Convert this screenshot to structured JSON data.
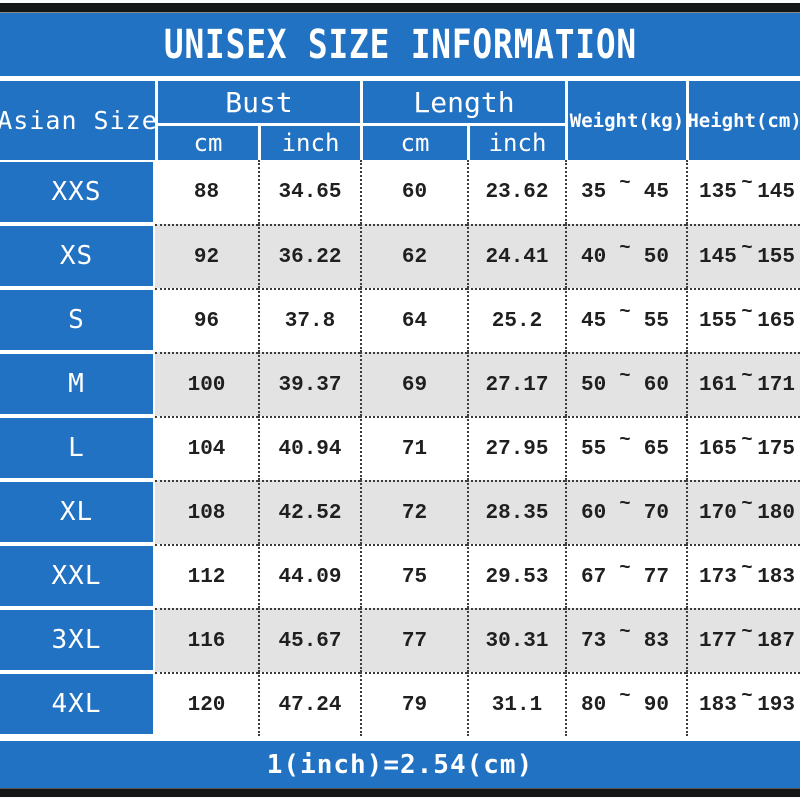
{
  "title": "UNISEX SIZE INFORMATION",
  "footer_note": "1(inch)=2.54(cm)",
  "colors": {
    "accent_blue": "#2272c4",
    "alt_row_gray": "#e4e3e4",
    "frame_bar_black": "#151515",
    "header_text": "#ffffff",
    "data_text": "#1f1f1f"
  },
  "table": {
    "corner_header": "Asian Size",
    "group_headers": {
      "bust": "Bust",
      "length": "Length"
    },
    "sub_headers": {
      "bust_cm": "cm",
      "bust_inch": "inch",
      "length_cm": "cm",
      "length_inch": "inch"
    },
    "single_headers": {
      "weight": "Weight(kg)",
      "height": "Height(cm)"
    },
    "tilde": "~",
    "rows": [
      {
        "size": "XXS",
        "bust_cm": "88",
        "bust_inch": "34.65",
        "length_cm": "60",
        "length_inch": "23.62",
        "weight_min": "35",
        "weight_max": "45",
        "height_min": "135",
        "height_max": "145"
      },
      {
        "size": "XS",
        "bust_cm": "92",
        "bust_inch": "36.22",
        "length_cm": "62",
        "length_inch": "24.41",
        "weight_min": "40",
        "weight_max": "50",
        "height_min": "145",
        "height_max": "155"
      },
      {
        "size": "S",
        "bust_cm": "96",
        "bust_inch": "37.8",
        "length_cm": "64",
        "length_inch": "25.2",
        "weight_min": "45",
        "weight_max": "55",
        "height_min": "155",
        "height_max": "165"
      },
      {
        "size": "M",
        "bust_cm": "100",
        "bust_inch": "39.37",
        "length_cm": "69",
        "length_inch": "27.17",
        "weight_min": "50",
        "weight_max": "60",
        "height_min": "161",
        "height_max": "171"
      },
      {
        "size": "L",
        "bust_cm": "104",
        "bust_inch": "40.94",
        "length_cm": "71",
        "length_inch": "27.95",
        "weight_min": "55",
        "weight_max": "65",
        "height_min": "165",
        "height_max": "175"
      },
      {
        "size": "XL",
        "bust_cm": "108",
        "bust_inch": "42.52",
        "length_cm": "72",
        "length_inch": "28.35",
        "weight_min": "60",
        "weight_max": "70",
        "height_min": "170",
        "height_max": "180"
      },
      {
        "size": "XXL",
        "bust_cm": "112",
        "bust_inch": "44.09",
        "length_cm": "75",
        "length_inch": "29.53",
        "weight_min": "67",
        "weight_max": "77",
        "height_min": "173",
        "height_max": "183"
      },
      {
        "size": "3XL",
        "bust_cm": "116",
        "bust_inch": "45.67",
        "length_cm": "77",
        "length_inch": "30.31",
        "weight_min": "73",
        "weight_max": "83",
        "height_min": "177",
        "height_max": "187"
      },
      {
        "size": "4XL",
        "bust_cm": "120",
        "bust_inch": "47.24",
        "length_cm": "79",
        "length_inch": "31.1",
        "weight_min": "80",
        "weight_max": "90",
        "height_min": "183",
        "height_max": "193"
      }
    ]
  },
  "chart_data": {
    "type": "table",
    "title": "UNISEX SIZE INFORMATION",
    "columns": [
      "Asian Size",
      "Bust cm",
      "Bust inch",
      "Length cm",
      "Length inch",
      "Weight(kg)",
      "Height(cm)"
    ],
    "rows": [
      [
        "XXS",
        88,
        34.65,
        60,
        23.62,
        "35~45",
        "135~145"
      ],
      [
        "XS",
        92,
        36.22,
        62,
        24.41,
        "40~50",
        "145~155"
      ],
      [
        "S",
        96,
        37.8,
        64,
        25.2,
        "45~55",
        "155~165"
      ],
      [
        "M",
        100,
        39.37,
        69,
        27.17,
        "50~60",
        "161~171"
      ],
      [
        "L",
        104,
        40.94,
        71,
        27.95,
        "55~65",
        "165~175"
      ],
      [
        "XL",
        108,
        42.52,
        72,
        28.35,
        "60~70",
        "170~180"
      ],
      [
        "XXL",
        112,
        44.09,
        75,
        29.53,
        "67~77",
        "173~183"
      ],
      [
        "3XL",
        116,
        45.67,
        77,
        30.31,
        "73~83",
        "177~187"
      ],
      [
        "4XL",
        120,
        47.24,
        79,
        31.1,
        "80~90",
        "183~193"
      ]
    ],
    "note": "1(inch)=2.54(cm)"
  }
}
